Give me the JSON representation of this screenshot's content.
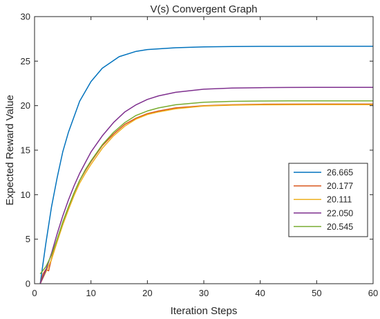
{
  "chart_data": {
    "type": "line",
    "title": "V(s) Convergent Graph",
    "xlabel": "Iteration Steps",
    "ylabel": "Expected Reward Value",
    "xlim": [
      0,
      60
    ],
    "ylim": [
      0,
      30
    ],
    "xticks": [
      0,
      10,
      20,
      30,
      40,
      50,
      60
    ],
    "yticks": [
      0,
      5,
      10,
      15,
      20,
      25,
      30
    ],
    "grid": false,
    "legend_position": "right-middle",
    "series": [
      {
        "name": "26.665",
        "color": "#0072BD",
        "x": [
          1,
          2,
          3,
          4,
          5,
          6,
          8,
          10,
          12,
          15,
          18,
          20,
          25,
          30,
          35,
          40,
          45,
          50,
          55,
          60
        ],
        "y": [
          0,
          4.5,
          8.6,
          11.9,
          14.8,
          17.0,
          20.5,
          22.7,
          24.2,
          25.5,
          26.1,
          26.3,
          26.5,
          26.6,
          26.64,
          26.655,
          26.66,
          26.663,
          26.665,
          26.665
        ]
      },
      {
        "name": "20.177",
        "color": "#D95319",
        "x": [
          1,
          1.5,
          2,
          2.5,
          3,
          4,
          5,
          6,
          7,
          8,
          9,
          10,
          12,
          14,
          16,
          18,
          20,
          22,
          25,
          30,
          35,
          40,
          45,
          50,
          55,
          60
        ],
        "y": [
          0,
          1.1,
          1.6,
          1.45,
          2.8,
          4.9,
          6.9,
          8.6,
          10.2,
          11.6,
          12.7,
          13.7,
          15.5,
          16.8,
          17.9,
          18.6,
          19.1,
          19.4,
          19.75,
          20.0,
          20.1,
          20.15,
          20.17,
          20.175,
          20.177,
          20.177
        ]
      },
      {
        "name": "20.111",
        "color": "#EDB120",
        "x": [
          1,
          2,
          3,
          4,
          5,
          6,
          7,
          8,
          9,
          10,
          12,
          14,
          16,
          18,
          20,
          22,
          25,
          30,
          35,
          40,
          45,
          50,
          55,
          60
        ],
        "y": [
          0,
          1.3,
          2.7,
          4.7,
          6.6,
          8.3,
          9.9,
          11.3,
          12.4,
          13.4,
          15.2,
          16.6,
          17.7,
          18.5,
          19.0,
          19.3,
          19.65,
          19.95,
          20.05,
          20.09,
          20.1,
          20.108,
          20.11,
          20.111
        ]
      },
      {
        "name": "22.050",
        "color": "#7E2F8E",
        "x": [
          1,
          2,
          3,
          4,
          5,
          6,
          7,
          8,
          9,
          10,
          12,
          14,
          16,
          18,
          20,
          22,
          25,
          30,
          35,
          40,
          45,
          50,
          55,
          60
        ],
        "y": [
          0,
          1.5,
          3.4,
          5.6,
          7.6,
          9.4,
          11.0,
          12.4,
          13.6,
          14.8,
          16.6,
          18.1,
          19.3,
          20.1,
          20.7,
          21.1,
          21.5,
          21.85,
          21.97,
          22.02,
          22.04,
          22.047,
          22.05,
          22.05
        ]
      },
      {
        "name": "20.545",
        "color": "#77AC30",
        "x": [
          1,
          2,
          3,
          4,
          5,
          6,
          7,
          8,
          9,
          10,
          12,
          14,
          16,
          18,
          20,
          22,
          25,
          30,
          35,
          40,
          45,
          50,
          55,
          60
        ],
        "y": [
          1.1,
          1.9,
          3.2,
          5.0,
          6.9,
          8.6,
          10.2,
          11.6,
          12.8,
          13.8,
          15.6,
          17.0,
          18.1,
          18.9,
          19.4,
          19.75,
          20.1,
          20.38,
          20.48,
          20.52,
          20.535,
          20.542,
          20.545,
          20.545
        ]
      }
    ]
  }
}
